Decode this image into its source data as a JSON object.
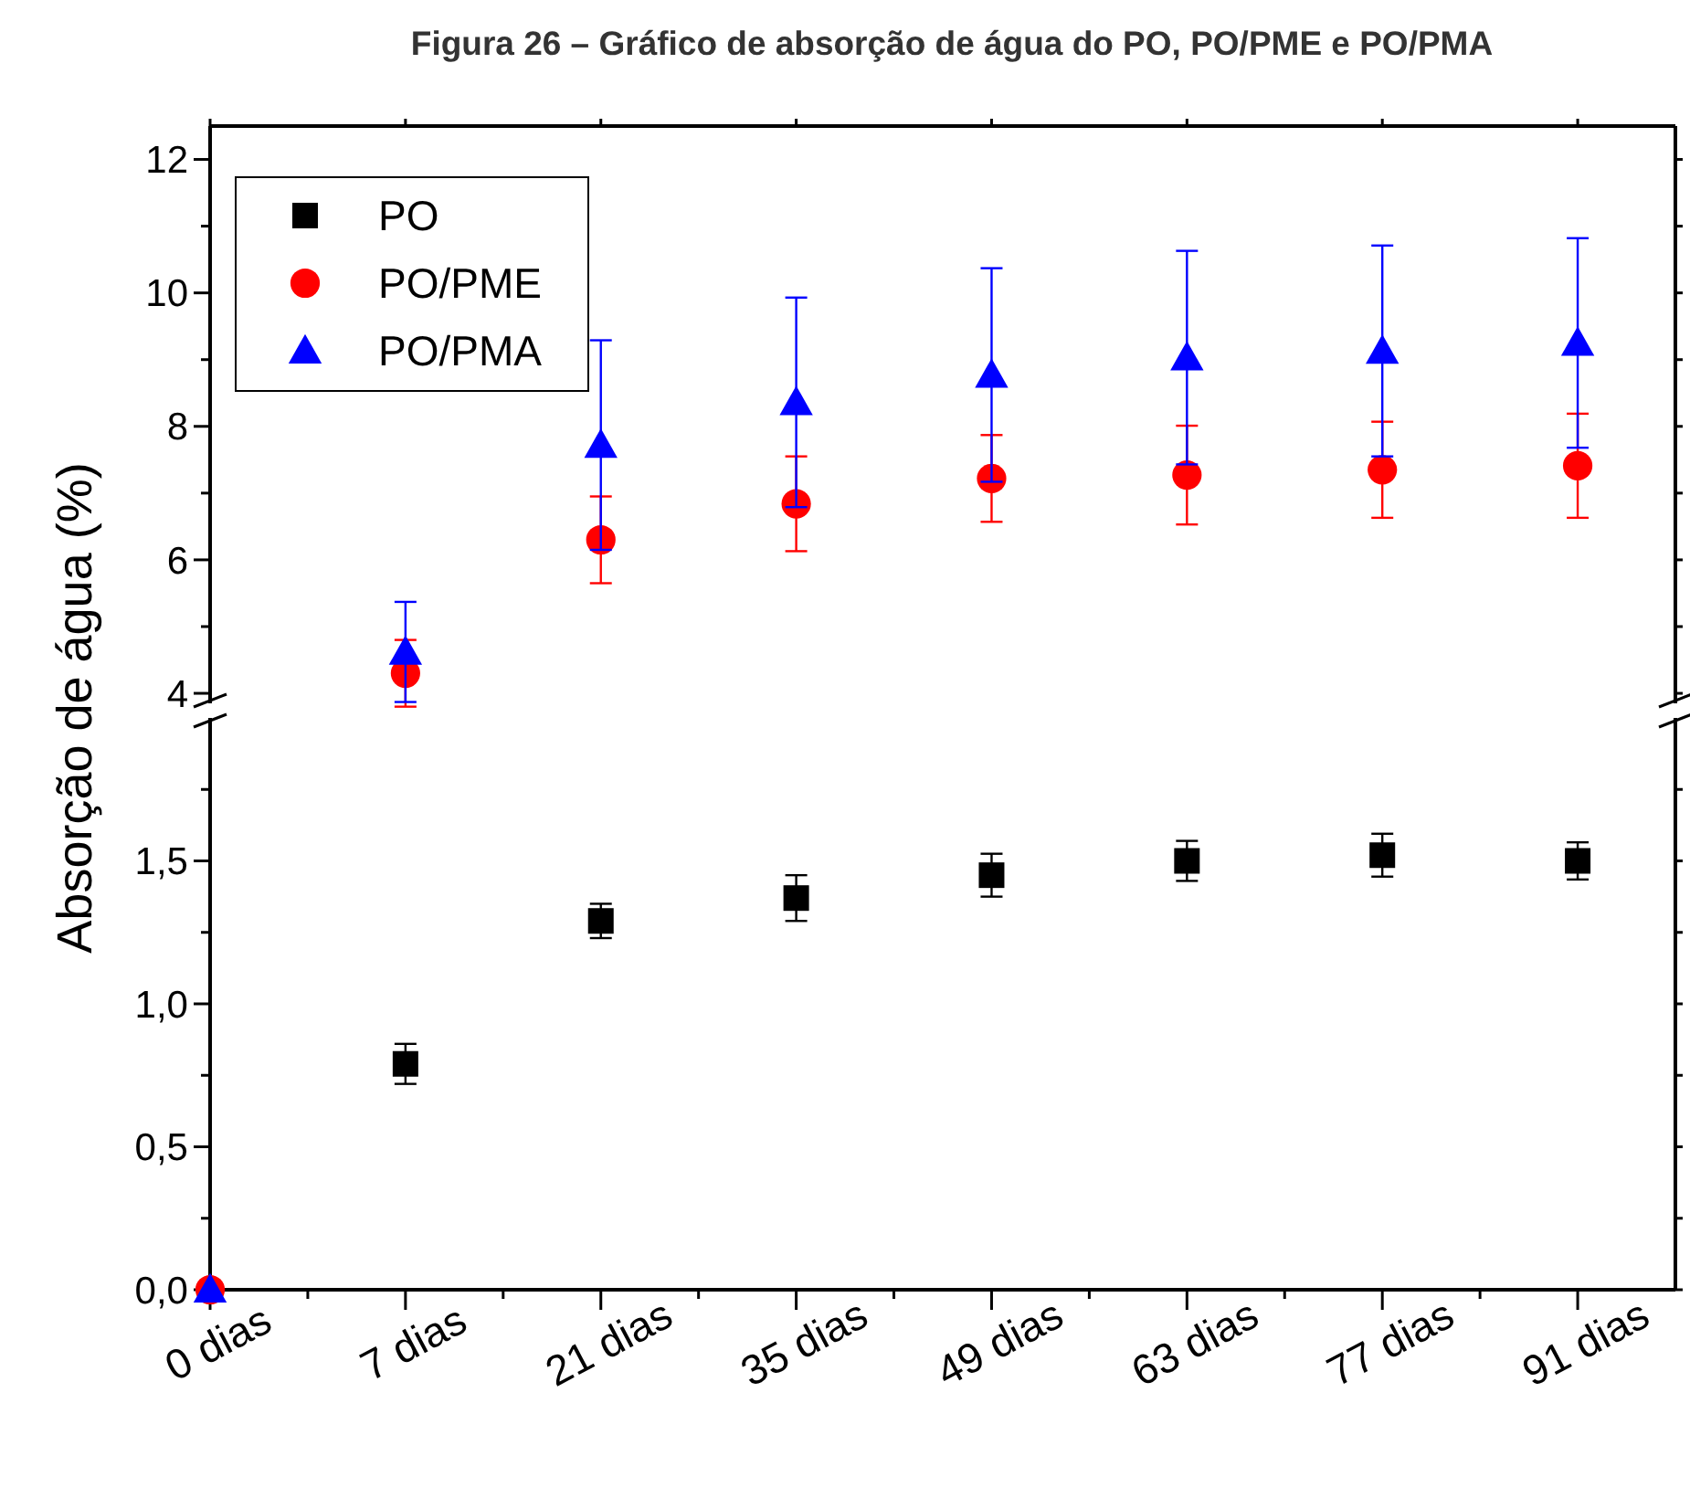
{
  "chart_data": [
    {
      "type": "scatter",
      "title": "Figura 26 – Gráfico de absorção de água do PO, PO/PME e PO/PMA",
      "ylim": [
        3.85,
        12.5
      ],
      "yticks": [
        4,
        {
          "value": 5,
          "label": null
        },
        6,
        {
          "value": 7,
          "label": null
        },
        8,
        {
          "value": 9,
          "label": null
        },
        10,
        {
          "value": 11,
          "label": null
        },
        12
      ],
      "tick_labels": "y",
      "legend": "top left",
      "grid": false,
      "series": [
        {
          "name": "PO",
          "color": "#000000",
          "marker": "square",
          "values": [
            null,
            null,
            null,
            null,
            null,
            null,
            null,
            null
          ]
        },
        {
          "name": "PO/PME",
          "color": "#ff0000",
          "marker": "circle",
          "values": [
            null,
            4.3,
            6.3,
            6.84,
            7.22,
            7.27,
            7.35,
            7.41
          ],
          "errors": [
            null,
            0.5,
            0.65,
            0.71,
            0.65,
            0.74,
            0.72,
            0.78
          ]
        },
        {
          "name": "PO/PMA",
          "color": "#0000ff",
          "marker": "triangle",
          "values": [
            null,
            4.62,
            7.72,
            8.36,
            8.77,
            9.03,
            9.13,
            9.25
          ],
          "errors": [
            null,
            0.75,
            1.57,
            1.57,
            1.6,
            1.6,
            1.58,
            1.57
          ]
        }
      ]
    },
    {
      "type": "scatter",
      "ylabel": "Absorção de água (%)",
      "categories": [
        "0 dias",
        "7 dias",
        "21 dias",
        "35 dias",
        "49 dias",
        "63 dias",
        "77 dias",
        "91 dias"
      ],
      "ylim": [
        0,
        2.0
      ],
      "yticks": [
        {
          "value": 0,
          "label": "0,0"
        },
        {
          "value": 0.25,
          "label": null
        },
        {
          "value": 0.5,
          "label": "0,5"
        },
        {
          "value": 0.75,
          "label": null
        },
        {
          "value": 1,
          "label": "1,0"
        },
        {
          "value": 1.25,
          "label": null
        },
        {
          "value": 1.5,
          "label": "1,5"
        },
        {
          "value": 1.75,
          "label": null
        }
      ],
      "grid": false,
      "series": [
        {
          "color": "#000000",
          "marker": "square",
          "values": [
            null,
            0.79,
            1.29,
            1.37,
            1.45,
            1.5,
            1.52,
            1.5
          ],
          "errors": [
            null,
            0.07,
            0.06,
            0.08,
            0.075,
            0.07,
            0.075,
            0.065
          ]
        },
        {
          "color": "#ff0000",
          "marker": "circle",
          "values": [
            0,
            null,
            null,
            null,
            null,
            null,
            null,
            null
          ]
        },
        {
          "color": "#0000ff",
          "marker": "triangle",
          "values": [
            0,
            null,
            null,
            null,
            null,
            null,
            null,
            null
          ]
        }
      ]
    }
  ]
}
